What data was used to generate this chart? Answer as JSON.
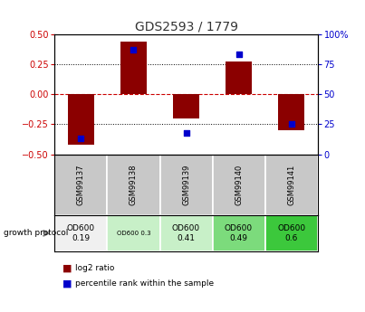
{
  "title": "GDS2593 / 1779",
  "samples": [
    "GSM99137",
    "GSM99138",
    "GSM99139",
    "GSM99140",
    "GSM99141"
  ],
  "log2_ratios": [
    -0.42,
    0.44,
    -0.2,
    0.27,
    -0.3
  ],
  "percentile_ranks": [
    13,
    87,
    18,
    83,
    25
  ],
  "ylim_left": [
    -0.5,
    0.5
  ],
  "ylim_right": [
    0,
    100
  ],
  "yticks_left": [
    -0.5,
    -0.25,
    0.0,
    0.25,
    0.5
  ],
  "yticks_right": [
    0,
    25,
    50,
    75,
    100
  ],
  "bar_color": "#8B0000",
  "dot_color": "#0000CC",
  "dashed_line_color": "#CC0000",
  "title_color": "#333333",
  "left_axis_color": "#CC0000",
  "right_axis_color": "#0000CC",
  "growth_labels": [
    "OD600\n0.19",
    "OD600 0.3",
    "OD600\n0.41",
    "OD600\n0.49",
    "OD600\n0.6"
  ],
  "growth_bg_colors": [
    "#f0f0f0",
    "#c8f0c8",
    "#c8f0c8",
    "#7cdb7c",
    "#3cc83c"
  ],
  "legend_red": "log2 ratio",
  "legend_blue": "percentile rank within the sample",
  "label_area_bg": "#c8c8c8",
  "plot_bg": "#ffffff"
}
